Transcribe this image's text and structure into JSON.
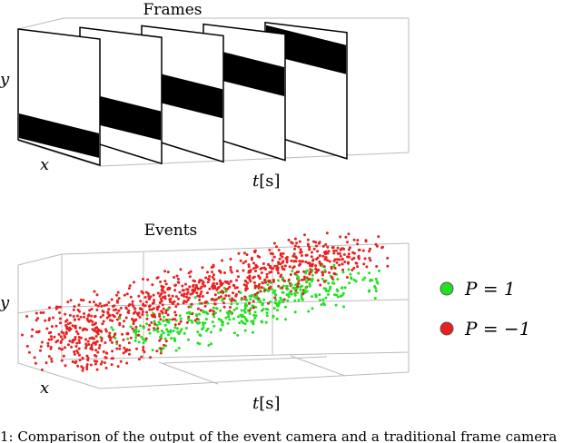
{
  "frames": {
    "title": "Frames",
    "y_label": "y",
    "x_label": "x",
    "t_label_var": "t",
    "t_label_unit": "[s]",
    "bar_positions": [
      0.0,
      0.25,
      0.5,
      0.75,
      1.0
    ]
  },
  "events": {
    "title": "Events",
    "y_label": "y",
    "x_label": "x",
    "t_label_var": "t",
    "t_label_unit": "[s]",
    "legend": [
      {
        "label": "P = 1",
        "color": "#22e022"
      },
      {
        "label": "P = −1",
        "color": "#e82020"
      }
    ]
  },
  "caption_fragment": "1: Comparison of the output of the event camera and a traditional frame camera"
}
